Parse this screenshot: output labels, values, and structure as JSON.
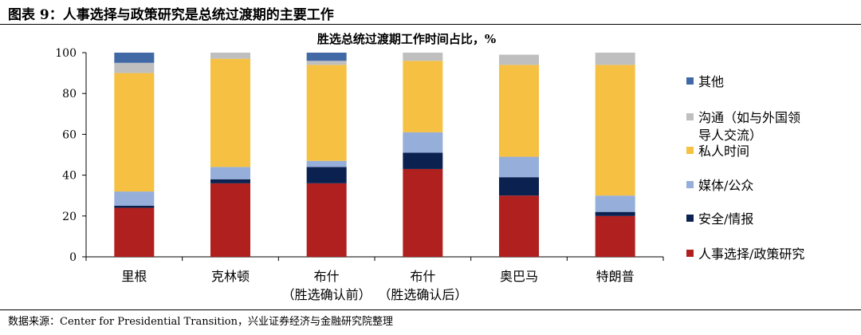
{
  "figure_title": "图表 9：人事选择与政策研究是总统过渡期的主要工作",
  "source": "数据来源：Center for Presidential Transition，兴业证券经济与金融研究院整理",
  "chart_data": {
    "type": "bar",
    "stacked": true,
    "title": "胜选总统过渡期工作时间占比，%",
    "xlabel": "",
    "ylabel": "",
    "ylim": [
      0,
      100
    ],
    "yticks": [
      0,
      20,
      40,
      60,
      80,
      100
    ],
    "grid": false,
    "legend_position": "right",
    "categories": [
      [
        "里根"
      ],
      [
        "克林顿"
      ],
      [
        "布什",
        "（胜选确认前）"
      ],
      [
        "布什",
        "（胜选确认后）"
      ],
      [
        "奥巴马"
      ],
      [
        "特朗普"
      ]
    ],
    "series": [
      {
        "name": "人事选择/政策研究",
        "color": "#B0201E",
        "values": [
          24,
          36,
          36,
          43,
          30,
          20
        ]
      },
      {
        "name": "安全/情报",
        "color": "#0B2150",
        "values": [
          1,
          2,
          8,
          8,
          9,
          2
        ]
      },
      {
        "name": "媒体/公众",
        "color": "#95AEDA",
        "values": [
          7,
          6,
          3,
          10,
          10,
          8
        ]
      },
      {
        "name": "私人时间",
        "color": "#F6C142",
        "values": [
          58,
          53,
          47,
          35,
          45,
          64
        ]
      },
      {
        "name": "沟通（如与外国领导人交流）",
        "legend_lines": [
          "沟通（如与外国领",
          "导人交流）"
        ],
        "color": "#BFBFBF",
        "values": [
          5,
          3,
          2,
          4,
          5,
          6
        ]
      },
      {
        "name": "其他",
        "color": "#4169A6",
        "values": [
          5,
          0,
          4,
          0,
          0,
          0
        ]
      }
    ]
  }
}
